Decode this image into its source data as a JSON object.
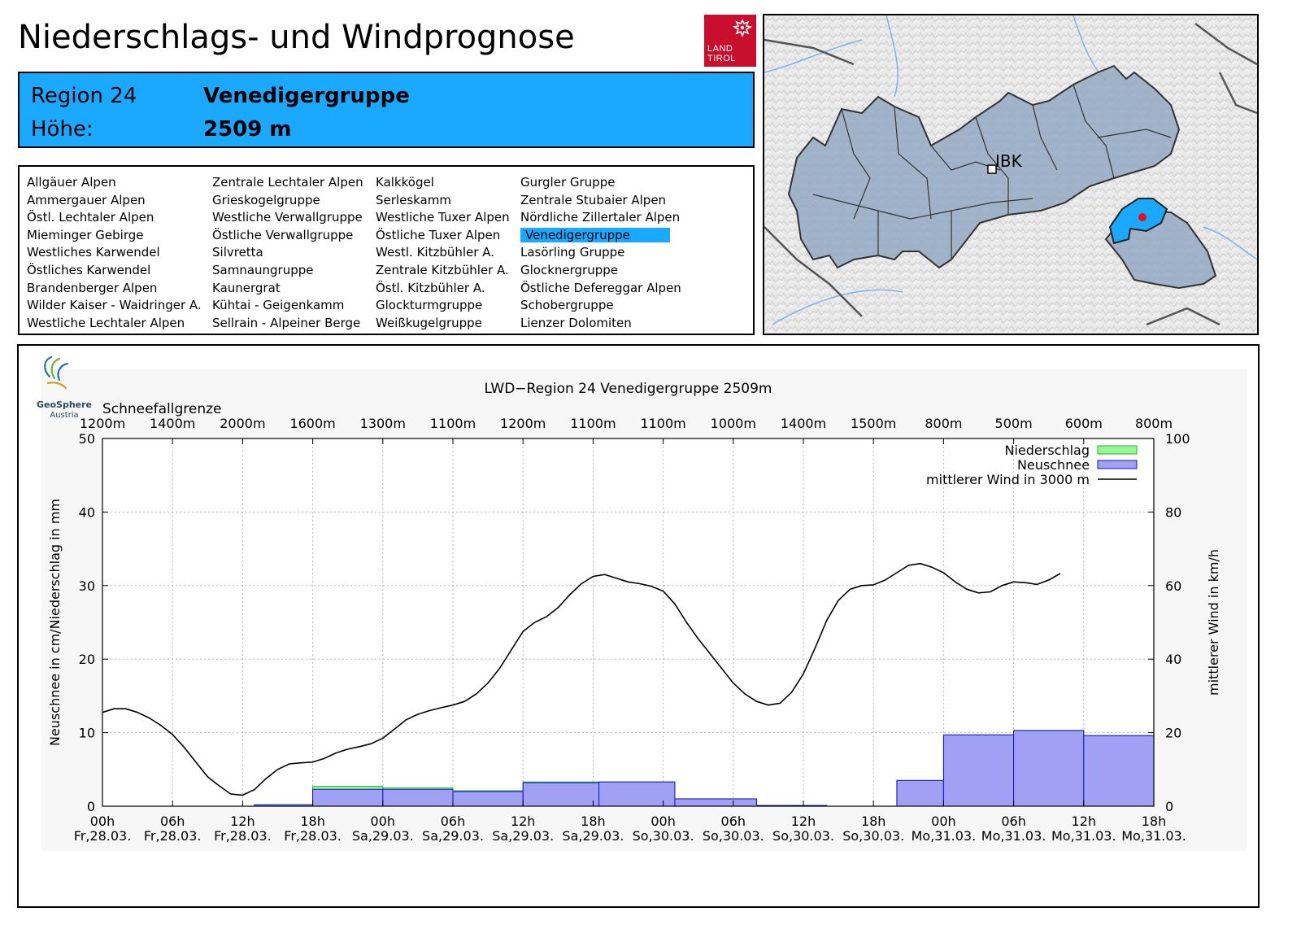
{
  "header": {
    "title": "Niederschlags- und Windprognose",
    "logo_line1": "LAND",
    "logo_line2": "TIROL",
    "region_label": "Region 24",
    "region_name": "Venedigergruppe",
    "height_label": "Höhe:",
    "height_value": "2509 m",
    "accent_color": "#1aa9ff",
    "logo_color": "#c8102e"
  },
  "regions": {
    "selected": "Venedigergruppe",
    "columns": [
      [
        "Allgäuer Alpen",
        "Ammergauer Alpen",
        "Östl. Lechtaler Alpen",
        "Mieminger Gebirge",
        "Westliches Karwendel",
        "Östliches Karwendel",
        "Brandenberger Alpen",
        "Wilder Kaiser - Waidringer A.",
        "Westliche Lechtaler Alpen"
      ],
      [
        "Zentrale Lechtaler Alpen",
        "Grieskogelgruppe",
        "Westliche Verwallgruppe",
        "Östliche Verwallgruppe",
        "Silvretta",
        "Samnaungruppe",
        "Kaunergrat",
        "Kühtai - Geigenkamm",
        "Sellrain - Alpeiner Berge"
      ],
      [
        "Kalkkögel",
        "Serleskamm",
        "Westliche Tuxer Alpen",
        "Östliche Tuxer Alpen",
        "Westl. Kitzbühler A.",
        "Zentrale Kitzbühler A.",
        "Östl. Kitzbühler A.",
        "Glockturmgruppe",
        "Weißkugelgruppe"
      ],
      [
        "Gurgler Gruppe",
        "Zentrale Stubaier Alpen",
        "Nördliche Zillertaler Alpen",
        "Venedigergruppe",
        "Lasörling Gruppe",
        "Glocknergruppe",
        "Östliche Defereggar Alpen",
        "Schobergruppe",
        "Lienzer Dolomiten"
      ]
    ]
  },
  "map": {
    "city_label": "IBK",
    "icon": "tirol-region-map",
    "highlight_color": "#1aa9ff",
    "marker_color": "#e8101a"
  },
  "chart_data": {
    "type": "bar+line",
    "title": "LWD−Region 24 Venedigergruppe 2509m",
    "brand_name": "GeoSphere",
    "brand_sub": "Austria",
    "snowline_label": "Schneefallgrenze",
    "snowline": [
      "1200m",
      "1400m",
      "2000m",
      "1600m",
      "1300m",
      "1100m",
      "1200m",
      "1100m",
      "1100m",
      "1000m",
      "1400m",
      "1500m",
      "800m",
      "500m",
      "600m",
      "800m"
    ],
    "x_ticks_time": [
      "00h",
      "06h",
      "12h",
      "18h",
      "00h",
      "06h",
      "12h",
      "18h",
      "00h",
      "06h",
      "12h",
      "18h",
      "00h",
      "06h",
      "12h",
      "18h"
    ],
    "x_ticks_date": [
      "Fr,28.03.",
      "Fr,28.03.",
      "Fr,28.03.",
      "Fr,28.03.",
      "Sa,29.03.",
      "Sa,29.03.",
      "Sa,29.03.",
      "Sa,29.03.",
      "So,30.03.",
      "So,30.03.",
      "So,30.03.",
      "So,30.03.",
      "Mo,31.03.",
      "Mo,31.03.",
      "Mo,31.03.",
      "Mo,31.03."
    ],
    "hours_span": [
      0,
      90
    ],
    "ylabel_left": "Neuschnee in cm/Niederschlag in mm",
    "ylabel_right": "mittlerer Wind in km/h",
    "ylim_left": [
      0,
      50
    ],
    "ylim_right": [
      0,
      100
    ],
    "yticks_left": [
      0,
      10,
      20,
      30,
      40,
      50
    ],
    "yticks_right": [
      0,
      20,
      40,
      60,
      80,
      100
    ],
    "grid": true,
    "legend": {
      "placement": "top-right",
      "precip_label": "Niederschlag",
      "snow_label": "Neuschnee",
      "wind_label": "mittlerer Wind in 3000 m"
    },
    "colors": {
      "precip_fill": "#98f598",
      "precip_edge": "#22bb22",
      "snow_fill": "#a0a0f5",
      "snow_edge": "#1010cc",
      "wind_line": "#000000"
    },
    "bars": [
      {
        "start": 13,
        "end": 18,
        "precip": 0.2,
        "snow": 0.2
      },
      {
        "start": 18,
        "end": 24,
        "precip": 2.7,
        "snow": 2.3
      },
      {
        "start": 24,
        "end": 30,
        "precip": 2.5,
        "snow": 2.3
      },
      {
        "start": 30,
        "end": 36,
        "precip": 2.1,
        "snow": 2.0
      },
      {
        "start": 36,
        "end": 42.5,
        "precip": 3.3,
        "snow": 3.2
      },
      {
        "start": 42.5,
        "end": 49,
        "precip": 3.3,
        "snow": 3.3
      },
      {
        "start": 49,
        "end": 56,
        "precip": 1.0,
        "snow": 1.0
      },
      {
        "start": 56,
        "end": 62,
        "precip": 0.1,
        "snow": 0.1
      },
      {
        "start": 68,
        "end": 72,
        "precip": 3.5,
        "snow": 3.5
      },
      {
        "start": 72,
        "end": 78,
        "precip": 9.7,
        "snow": 9.7
      },
      {
        "start": 78,
        "end": 84,
        "precip": 10.3,
        "snow": 10.3
      },
      {
        "start": 84,
        "end": 90,
        "precip": 9.6,
        "snow": 9.6
      }
    ],
    "wind": [
      [
        0,
        25.5
      ],
      [
        1,
        26.5
      ],
      [
        2,
        26.5
      ],
      [
        3,
        25.5
      ],
      [
        4,
        24
      ],
      [
        5,
        22
      ],
      [
        6,
        19.5
      ],
      [
        7,
        16
      ],
      [
        8,
        12
      ],
      [
        9,
        8
      ],
      [
        10,
        5.5
      ],
      [
        11,
        3.3
      ],
      [
        12,
        3.0
      ],
      [
        13,
        4.5
      ],
      [
        14,
        7.5
      ],
      [
        15,
        10
      ],
      [
        16,
        11.5
      ],
      [
        17,
        11.8
      ],
      [
        18,
        12
      ],
      [
        19,
        13
      ],
      [
        20,
        14.5
      ],
      [
        21,
        15.5
      ],
      [
        22,
        16.2
      ],
      [
        23,
        17
      ],
      [
        24,
        18.5
      ],
      [
        25,
        21
      ],
      [
        26,
        23.5
      ],
      [
        27,
        25
      ],
      [
        28,
        26
      ],
      [
        29,
        26.8
      ],
      [
        30,
        27.5
      ],
      [
        31,
        28.5
      ],
      [
        32,
        30.5
      ],
      [
        33,
        33.5
      ],
      [
        34,
        37.5
      ],
      [
        35,
        42.5
      ],
      [
        36,
        47.5
      ],
      [
        37,
        50
      ],
      [
        38,
        51.5
      ],
      [
        39,
        54
      ],
      [
        40,
        57.5
      ],
      [
        41,
        60.5
      ],
      [
        42,
        62.5
      ],
      [
        43,
        63
      ],
      [
        44,
        62
      ],
      [
        45,
        61
      ],
      [
        46,
        60.5
      ],
      [
        47,
        59.8
      ],
      [
        48,
        58.5
      ],
      [
        49,
        55
      ],
      [
        50,
        50
      ],
      [
        51,
        45.5
      ],
      [
        52,
        41.5
      ],
      [
        53,
        37.5
      ],
      [
        54,
        33.5
      ],
      [
        55,
        30.5
      ],
      [
        56,
        28.5
      ],
      [
        57,
        27.5
      ],
      [
        58,
        28
      ],
      [
        59,
        31
      ],
      [
        60,
        36
      ],
      [
        61,
        43
      ],
      [
        62,
        50.5
      ],
      [
        63,
        56
      ],
      [
        64,
        59
      ],
      [
        65,
        60
      ],
      [
        66,
        60.2
      ],
      [
        67,
        61.5
      ],
      [
        68,
        63.5
      ],
      [
        69,
        65.5
      ],
      [
        70,
        66
      ],
      [
        71,
        65
      ],
      [
        72,
        63.5
      ],
      [
        73,
        61
      ],
      [
        74,
        59
      ],
      [
        75,
        58
      ],
      [
        76,
        58.3
      ],
      [
        77,
        60
      ],
      [
        78,
        61
      ],
      [
        79,
        60.8
      ],
      [
        80,
        60.3
      ],
      [
        81,
        61.5
      ],
      [
        82,
        63.3
      ]
    ]
  }
}
